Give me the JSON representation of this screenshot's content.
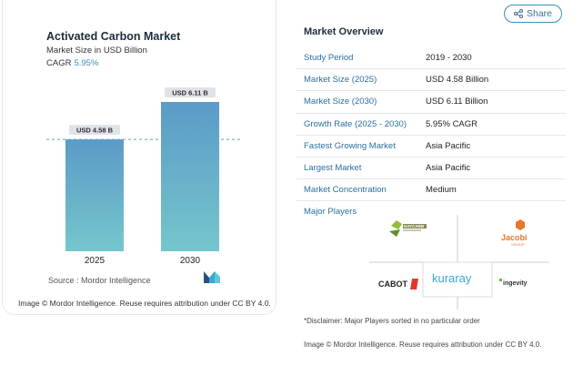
{
  "chart": {
    "title": "Activated Carbon Market",
    "subtitle": "Market Size in USD Billion",
    "cagr_label": "CAGR",
    "cagr_value": "5.95%",
    "source": "Source :  Mordor Intelligence",
    "credit": "Image © Mordor Intelligence. Reuse requires attribution under CC BY 4.0."
  },
  "chart_data": {
    "type": "bar",
    "categories": [
      "2025",
      "2030"
    ],
    "values": [
      4.58,
      6.11
    ],
    "data_labels": [
      "USD 4.58 B",
      "USD 6.11 B"
    ],
    "title": "Activated Carbon Market",
    "subtitle": "Market Size in USD Billion",
    "xlabel": "",
    "ylabel": "",
    "ylim": [
      0,
      6.11
    ],
    "reference_line": 4.58,
    "grid": false,
    "colors": {
      "bar_top": "#5b9bc8",
      "bar_bottom": "#75c6cc",
      "label_bg": "#dfe3e8",
      "ref_line": "#5aa5c9"
    }
  },
  "share": {
    "label": "Share",
    "icon": "share-icon"
  },
  "overview": {
    "title": "Market Overview",
    "rows": [
      {
        "key": "Study Period",
        "value": "2019 - 2030"
      },
      {
        "key": "Market Size (2025)",
        "value": "USD 4.58 Billion"
      },
      {
        "key": "Market Size (2030)",
        "value": "USD 6.11 Billion"
      },
      {
        "key": "Growth Rate (2025 - 2030)",
        "value": "5.95% CAGR"
      },
      {
        "key": "Fastest Growing Market",
        "value": "Asia Pacific"
      },
      {
        "key": "Largest Market",
        "value": "Asia Pacific"
      },
      {
        "key": "Market Concentration",
        "value": "Medium"
      }
    ],
    "players_title": "Major Players",
    "players": {
      "haycarb": "HAYCARB",
      "jacobi": "Jacobi",
      "jacobi_sub": "GROUP",
      "cabot": "CABOT",
      "kuraray": "kuraray",
      "ingevity": "ingevity"
    },
    "disclaimer": "*Disclaimer: Major Players sorted in no particular order",
    "credit": "Image © Mordor Intelligence. Reuse requires attribution under CC BY 4.0."
  },
  "colors": {
    "accent": "#3a90b8",
    "link": "#2a6fa0",
    "kuraray": "#3aa7d6",
    "cabot_red": "#e03a2f",
    "jacobi_orange": "#e8762b",
    "ingevity_green": "#6cb33f"
  }
}
